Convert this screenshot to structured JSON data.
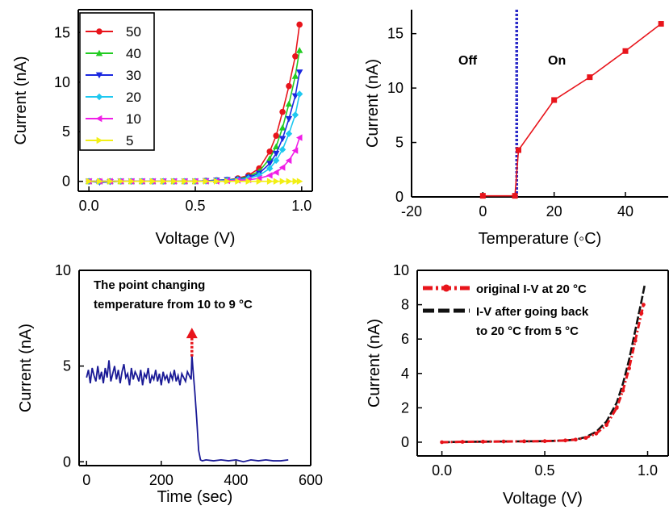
{
  "colors": {
    "s50": "#e8141b",
    "s40": "#22cc22",
    "s30": "#1a28e0",
    "s20": "#1ec8f0",
    "s10": "#f01ee6",
    "s5": "#f2ef14",
    "red": "#e8141b",
    "blue_dash": "#2a2ac8",
    "trace": "#1a1a96",
    "black": "#111111"
  },
  "chart_data": [
    {
      "id": "a",
      "type": "line",
      "xlabel": "Voltage (V)",
      "ylabel": "Current (nA)",
      "xlim": [
        -0.05,
        1.05
      ],
      "ylim": [
        -1,
        17.3
      ],
      "xticks": [
        "0.0",
        "0.5",
        "1.0"
      ],
      "xtick_values": [
        0,
        0.5,
        1.0
      ],
      "yticks": [
        "0",
        "5",
        "10",
        "15"
      ],
      "ytick_values": [
        0,
        5,
        10,
        15
      ],
      "legend_position": "top-left",
      "series": [
        {
          "name": "50",
          "marker": "circle",
          "color_key": "s50",
          "x": [
            0,
            0.05,
            0.1,
            0.15,
            0.2,
            0.25,
            0.3,
            0.35,
            0.4,
            0.45,
            0.5,
            0.55,
            0.6,
            0.65,
            0.7,
            0.75,
            0.8,
            0.85,
            0.88,
            0.91,
            0.94,
            0.97,
            0.99
          ],
          "y": [
            0,
            0,
            0,
            0,
            0,
            0,
            0,
            0,
            0,
            0,
            0,
            0.05,
            0.1,
            0.15,
            0.3,
            0.6,
            1.3,
            3.0,
            4.6,
            7.0,
            9.6,
            12.6,
            15.8
          ]
        },
        {
          "name": "40",
          "marker": "triangle-up",
          "color_key": "s40",
          "x": [
            0,
            0.05,
            0.1,
            0.15,
            0.2,
            0.25,
            0.3,
            0.35,
            0.4,
            0.45,
            0.5,
            0.55,
            0.6,
            0.65,
            0.7,
            0.75,
            0.8,
            0.85,
            0.88,
            0.91,
            0.94,
            0.97,
            0.99
          ],
          "y": [
            0,
            0,
            0,
            0,
            0,
            0,
            0,
            0,
            0,
            0,
            0,
            0.05,
            0.1,
            0.15,
            0.25,
            0.5,
            1.0,
            2.3,
            3.5,
            5.4,
            7.8,
            10.6,
            13.2
          ]
        },
        {
          "name": "30",
          "marker": "triangle-down",
          "color_key": "s30",
          "x": [
            0,
            0.05,
            0.1,
            0.15,
            0.2,
            0.25,
            0.3,
            0.35,
            0.4,
            0.45,
            0.5,
            0.55,
            0.6,
            0.65,
            0.7,
            0.75,
            0.8,
            0.85,
            0.88,
            0.91,
            0.94,
            0.97,
            0.99
          ],
          "y": [
            0,
            -0.1,
            -0.05,
            0,
            0,
            0,
            0,
            0,
            0,
            0,
            0,
            0.05,
            0.1,
            0.15,
            0.2,
            0.4,
            0.8,
            1.8,
            2.8,
            4.3,
            6.3,
            8.6,
            11.0
          ]
        },
        {
          "name": "20",
          "marker": "diamond",
          "color_key": "s20",
          "x": [
            0,
            0.05,
            0.1,
            0.15,
            0.2,
            0.25,
            0.3,
            0.35,
            0.4,
            0.45,
            0.5,
            0.55,
            0.6,
            0.65,
            0.7,
            0.75,
            0.8,
            0.85,
            0.88,
            0.91,
            0.94,
            0.97,
            0.99
          ],
          "y": [
            0,
            0,
            0,
            0,
            0,
            0,
            0,
            0,
            0,
            0,
            0,
            0,
            0.05,
            0.1,
            0.15,
            0.3,
            0.6,
            1.3,
            2.1,
            3.2,
            4.8,
            6.7,
            8.8
          ]
        },
        {
          "name": "10",
          "marker": "triangle-left",
          "color_key": "s10",
          "x": [
            0,
            0.05,
            0.1,
            0.15,
            0.2,
            0.25,
            0.3,
            0.35,
            0.4,
            0.45,
            0.5,
            0.55,
            0.6,
            0.65,
            0.7,
            0.75,
            0.8,
            0.85,
            0.88,
            0.91,
            0.94,
            0.97,
            0.99
          ],
          "y": [
            0,
            0,
            0,
            0,
            0,
            0,
            0,
            0,
            0,
            0,
            0,
            0,
            0,
            0.05,
            0.1,
            0.15,
            0.3,
            0.6,
            0.9,
            1.4,
            2.1,
            3.1,
            4.4
          ]
        },
        {
          "name": "5",
          "marker": "triangle-right",
          "color_key": "s5",
          "x": [
            0,
            0.05,
            0.1,
            0.15,
            0.2,
            0.25,
            0.3,
            0.35,
            0.4,
            0.45,
            0.5,
            0.55,
            0.6,
            0.65,
            0.7,
            0.75,
            0.8,
            0.85,
            0.88,
            0.91,
            0.94,
            0.97,
            0.99
          ],
          "y": [
            0,
            0,
            0,
            0,
            0,
            0,
            0,
            0,
            0,
            0,
            0,
            0,
            0,
            0,
            0,
            0,
            0,
            0,
            0,
            0,
            0,
            0,
            0
          ]
        }
      ]
    },
    {
      "id": "b",
      "type": "line",
      "xlabel": "Temperature (◦C)",
      "ylabel": "Current (nA)",
      "xlim": [
        -20,
        52
      ],
      "ylim": [
        0,
        17.2
      ],
      "xticks": [
        "-20",
        "0",
        "20",
        "40"
      ],
      "xtick_values": [
        -20,
        0,
        20,
        40
      ],
      "yticks": [
        "0",
        "5",
        "10",
        "15"
      ],
      "ytick_values": [
        0,
        5,
        10,
        15
      ],
      "threshold_x": 9.5,
      "region_labels": [
        "Off",
        "On"
      ],
      "series": [
        {
          "name": "",
          "marker": "square",
          "color_key": "red",
          "x": [
            0,
            9,
            10,
            20,
            30,
            40,
            50
          ],
          "y": [
            0.1,
            0.1,
            4.3,
            8.9,
            11.0,
            13.4,
            15.9
          ]
        }
      ]
    },
    {
      "id": "c",
      "type": "line",
      "xlabel": "Time (sec)",
      "ylabel": "Current (nA)",
      "xlim": [
        -20,
        600
      ],
      "ylim": [
        -0.2,
        10
      ],
      "xticks": [
        "0",
        "200",
        "400",
        "600"
      ],
      "xtick_values": [
        0,
        200,
        400,
        600
      ],
      "yticks": [
        "0",
        "5",
        "10"
      ],
      "ytick_values": [
        0,
        5,
        10
      ],
      "annotation": {
        "line1": "The point changing",
        "line2": "temperature from 10 to 9 °C",
        "x": 282,
        "y_from": 5.5,
        "y_to": 7.0
      },
      "series": [
        {
          "name": "",
          "color_key": "trace",
          "x": [
            0,
            5,
            10,
            15,
            20,
            25,
            30,
            35,
            40,
            45,
            50,
            55,
            60,
            65,
            70,
            75,
            80,
            85,
            90,
            95,
            100,
            105,
            110,
            115,
            120,
            125,
            130,
            135,
            140,
            145,
            150,
            155,
            160,
            165,
            170,
            175,
            180,
            185,
            190,
            195,
            200,
            205,
            210,
            215,
            220,
            225,
            230,
            235,
            240,
            245,
            250,
            255,
            260,
            265,
            270,
            275,
            280,
            282,
            285,
            290,
            295,
            300,
            305,
            310,
            320,
            340,
            360,
            380,
            400,
            420,
            440,
            460,
            480,
            500,
            520,
            540
          ],
          "y": [
            4.4,
            4.8,
            4.1,
            4.9,
            4.5,
            4.2,
            5.0,
            4.3,
            4.7,
            4.1,
            4.9,
            4.4,
            5.3,
            4.2,
            4.6,
            5.0,
            4.3,
            4.8,
            4.1,
            4.7,
            5.1,
            4.4,
            4.6,
            4.0,
            4.9,
            4.3,
            4.7,
            4.5,
            4.2,
            4.8,
            4.0,
            4.6,
            4.4,
            4.9,
            4.1,
            4.5,
            4.3,
            4.8,
            4.2,
            4.6,
            4.0,
            4.7,
            4.3,
            4.5,
            4.1,
            4.6,
            4.3,
            4.8,
            4.2,
            4.5,
            4.0,
            4.6,
            4.4,
            4.2,
            4.7,
            4.5,
            4.3,
            5.6,
            4.8,
            3.6,
            2.2,
            0.6,
            0.1,
            0.05,
            0.1,
            0.05,
            0.1,
            0.05,
            0.1,
            0.0,
            0.1,
            0.05,
            0.1,
            0.05,
            0.05,
            0.1
          ]
        }
      ]
    },
    {
      "id": "d",
      "type": "line",
      "xlabel": "Voltage (V)",
      "ylabel": "Current (nA)",
      "xlim": [
        -0.12,
        1.1
      ],
      "ylim": [
        -0.8,
        10
      ],
      "xticks": [
        "0.0",
        "0.5",
        "1.0"
      ],
      "xtick_values": [
        0,
        0.5,
        1.0
      ],
      "yticks": [
        "0",
        "2",
        "4",
        "6",
        "8",
        "10"
      ],
      "ytick_values": [
        0,
        2,
        4,
        6,
        8,
        10
      ],
      "legend_position": "top-left",
      "series": [
        {
          "name": "original I-V at 20 °C",
          "style": "dash-dot-circle",
          "color_key": "red",
          "x": [
            0,
            0.1,
            0.2,
            0.3,
            0.4,
            0.5,
            0.6,
            0.65,
            0.7,
            0.75,
            0.8,
            0.85,
            0.88,
            0.91,
            0.94,
            0.97,
            0.98
          ],
          "y": [
            0,
            0.02,
            0.03,
            0.04,
            0.05,
            0.06,
            0.1,
            0.15,
            0.25,
            0.5,
            1.0,
            2.0,
            3.0,
            4.3,
            5.9,
            7.5,
            8.0
          ]
        },
        {
          "name": "I-V after going back to 20 °C from 5 °C",
          "legend_line1": "I-V after going back",
          "legend_line2": "to 20 °C from 5 °C",
          "style": "dash",
          "color_key": "black",
          "x": [
            0,
            0.1,
            0.2,
            0.3,
            0.4,
            0.5,
            0.6,
            0.65,
            0.7,
            0.75,
            0.8,
            0.85,
            0.88,
            0.91,
            0.94,
            0.97,
            0.985
          ],
          "y": [
            0,
            0.02,
            0.03,
            0.04,
            0.05,
            0.06,
            0.1,
            0.15,
            0.3,
            0.6,
            1.2,
            2.3,
            3.4,
            4.8,
            6.5,
            8.2,
            9.1
          ]
        }
      ]
    }
  ]
}
